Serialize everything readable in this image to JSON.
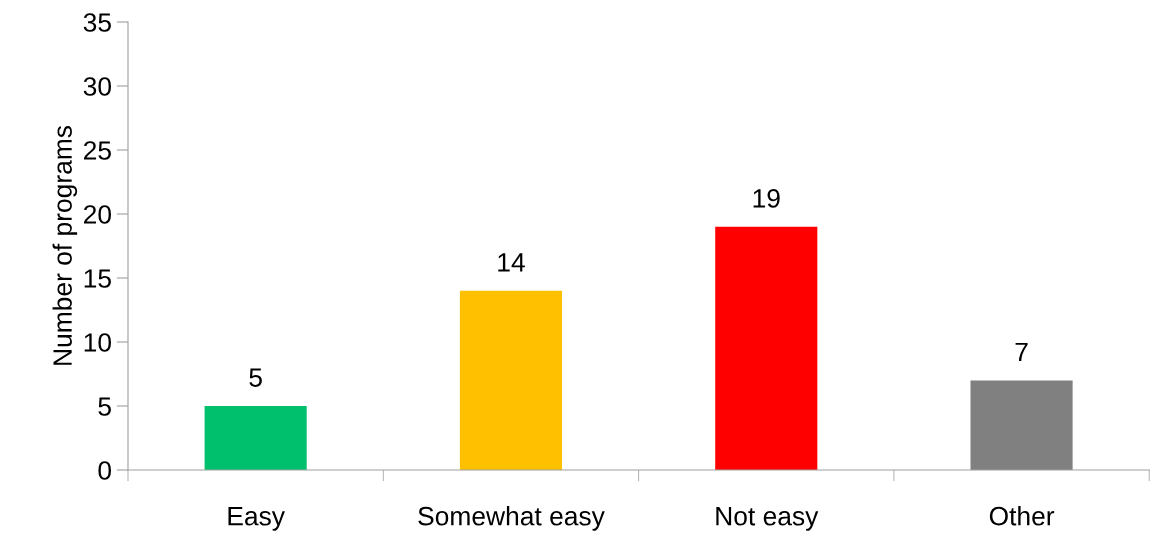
{
  "chart_data": {
    "type": "bar",
    "categories": [
      "Easy",
      "Somewhat easy",
      "Not easy",
      "Other"
    ],
    "values": [
      5,
      14,
      19,
      7
    ],
    "colors": [
      "#00c06e",
      "#ffc000",
      "#ff0000",
      "#808080"
    ],
    "ylabel": "Number of programs",
    "ylim": [
      0,
      35
    ],
    "yticks": [
      0,
      5,
      10,
      15,
      20,
      25,
      30,
      35
    ],
    "data_labels": true,
    "grid": false,
    "legend": false
  }
}
